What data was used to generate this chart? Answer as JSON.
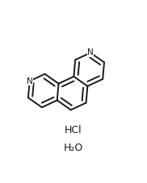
{
  "line_color": "#1a1a1a",
  "bg_color": "#ffffff",
  "lw": 1.4,
  "dbo": 0.013,
  "shorten": 0.013,
  "hcl_label": "HCl",
  "h2o_label": "H₂O",
  "font_size_atom": 7.5,
  "font_size_label": 9,
  "ox": 0.5,
  "oy": 0.63,
  "scale": 0.115
}
